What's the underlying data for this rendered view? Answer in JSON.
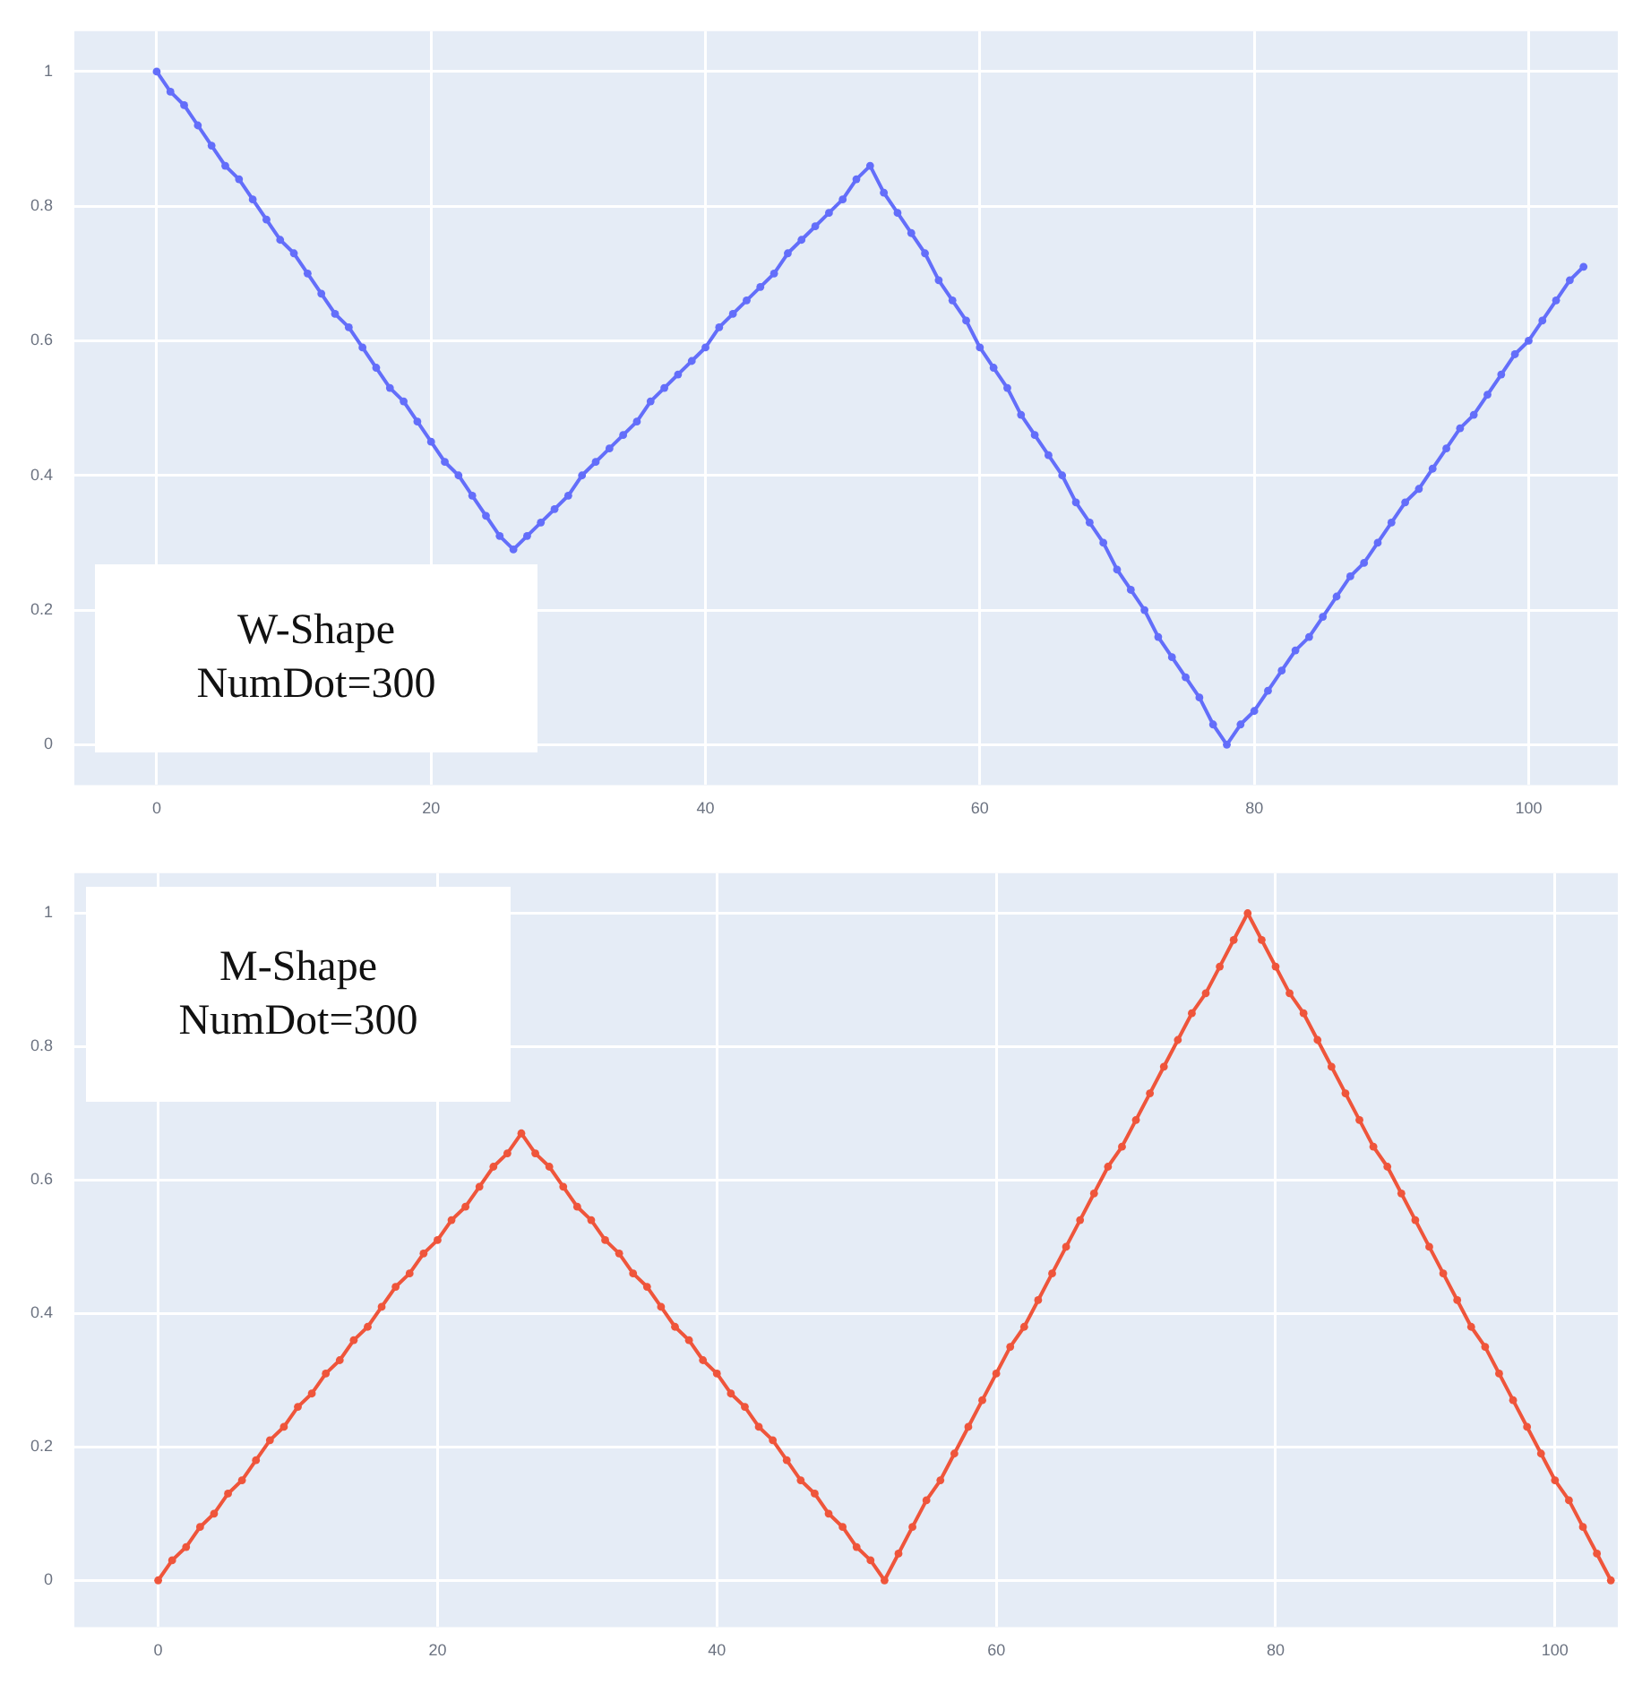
{
  "chart_data": [
    {
      "type": "line",
      "annotations": [
        "W-Shape\nNumDot=300"
      ],
      "marker": "circle",
      "grid": true,
      "legend": false,
      "xlim": [
        -6,
        106.5
      ],
      "xticks": [
        0,
        20,
        40,
        60,
        80,
        100
      ],
      "ylim": [
        -0.06,
        1.06
      ],
      "yticks": [
        0,
        0.2,
        0.4,
        0.6,
        0.8,
        1
      ],
      "x": [
        0,
        1,
        2,
        3,
        4,
        5,
        6,
        7,
        8,
        9,
        10,
        11,
        12,
        13,
        14,
        15,
        16,
        17,
        18,
        19,
        20,
        21,
        22,
        23,
        24,
        25,
        26,
        27,
        28,
        29,
        30,
        31,
        32,
        33,
        34,
        35,
        36,
        37,
        38,
        39,
        40,
        41,
        42,
        43,
        44,
        45,
        46,
        47,
        48,
        49,
        50,
        51,
        52,
        53,
        54,
        55,
        56,
        57,
        58,
        59,
        60,
        61,
        62,
        63,
        64,
        65,
        66,
        67,
        68,
        69,
        70,
        71,
        72,
        73,
        74,
        75,
        76,
        77,
        78,
        79,
        80,
        81,
        82,
        83,
        84,
        85,
        86,
        87,
        88,
        89,
        90,
        91,
        92,
        93,
        94,
        95,
        96,
        97,
        98,
        99,
        100,
        101,
        102,
        103,
        104
      ],
      "series": [
        {
          "color": "#636efa",
          "values": [
            1,
            0.97,
            0.95,
            0.92,
            0.89,
            0.86,
            0.84,
            0.81,
            0.78,
            0.75,
            0.73,
            0.7,
            0.67,
            0.64,
            0.62,
            0.59,
            0.56,
            0.53,
            0.51,
            0.48,
            0.45,
            0.42,
            0.4,
            0.37,
            0.34,
            0.31,
            0.29,
            0.31,
            0.33,
            0.35,
            0.37,
            0.4,
            0.42,
            0.44,
            0.46,
            0.48,
            0.51,
            0.53,
            0.55,
            0.57,
            0.59,
            0.62,
            0.64,
            0.66,
            0.68,
            0.7,
            0.73,
            0.75,
            0.77,
            0.79,
            0.81,
            0.84,
            0.86,
            0.82,
            0.79,
            0.76,
            0.73,
            0.69,
            0.66,
            0.63,
            0.59,
            0.56,
            0.53,
            0.49,
            0.46,
            0.43,
            0.4,
            0.36,
            0.33,
            0.3,
            0.26,
            0.23,
            0.2,
            0.16,
            0.13,
            0.1,
            0.07,
            0.03,
            0,
            0.03,
            0.05,
            0.08,
            0.11,
            0.14,
            0.16,
            0.19,
            0.22,
            0.25,
            0.27,
            0.3,
            0.33,
            0.36,
            0.38,
            0.41,
            0.44,
            0.47,
            0.49,
            0.52,
            0.55,
            0.58,
            0.6,
            0.63,
            0.66,
            0.69,
            0.71
          ]
        }
      ]
    },
    {
      "type": "line",
      "annotations": [
        "M-Shape\nNumDot=300"
      ],
      "marker": "circle",
      "grid": true,
      "legend": false,
      "xlim": [
        -6,
        104.5
      ],
      "xticks": [
        0,
        20,
        40,
        60,
        80,
        100
      ],
      "ylim": [
        -0.07,
        1.06
      ],
      "yticks": [
        0,
        0.2,
        0.4,
        0.6,
        0.8,
        1
      ],
      "x": [
        0,
        1,
        2,
        3,
        4,
        5,
        6,
        7,
        8,
        9,
        10,
        11,
        12,
        13,
        14,
        15,
        16,
        17,
        18,
        19,
        20,
        21,
        22,
        23,
        24,
        25,
        26,
        27,
        28,
        29,
        30,
        31,
        32,
        33,
        34,
        35,
        36,
        37,
        38,
        39,
        40,
        41,
        42,
        43,
        44,
        45,
        46,
        47,
        48,
        49,
        50,
        51,
        52,
        53,
        54,
        55,
        56,
        57,
        58,
        59,
        60,
        61,
        62,
        63,
        64,
        65,
        66,
        67,
        68,
        69,
        70,
        71,
        72,
        73,
        74,
        75,
        76,
        77,
        78,
        79,
        80,
        81,
        82,
        83,
        84,
        85,
        86,
        87,
        88,
        89,
        90,
        91,
        92,
        93,
        94,
        95,
        96,
        97,
        98,
        99,
        100,
        101,
        102,
        103,
        104
      ],
      "series": [
        {
          "color": "#ef553b",
          "values": [
            0,
            0.03,
            0.05,
            0.08,
            0.1,
            0.13,
            0.15,
            0.18,
            0.21,
            0.23,
            0.26,
            0.28,
            0.31,
            0.33,
            0.36,
            0.38,
            0.41,
            0.44,
            0.46,
            0.49,
            0.51,
            0.54,
            0.56,
            0.59,
            0.62,
            0.64,
            0.67,
            0.64,
            0.62,
            0.59,
            0.56,
            0.54,
            0.51,
            0.49,
            0.46,
            0.44,
            0.41,
            0.38,
            0.36,
            0.33,
            0.31,
            0.28,
            0.26,
            0.23,
            0.21,
            0.18,
            0.15,
            0.13,
            0.1,
            0.08,
            0.05,
            0.03,
            0,
            0.04,
            0.08,
            0.12,
            0.15,
            0.19,
            0.23,
            0.27,
            0.31,
            0.35,
            0.38,
            0.42,
            0.46,
            0.5,
            0.54,
            0.58,
            0.62,
            0.65,
            0.69,
            0.73,
            0.77,
            0.81,
            0.85,
            0.88,
            0.92,
            0.96,
            1,
            0.96,
            0.92,
            0.88,
            0.85,
            0.81,
            0.77,
            0.73,
            0.69,
            0.65,
            0.62,
            0.58,
            0.54,
            0.5,
            0.46,
            0.42,
            0.38,
            0.35,
            0.31,
            0.27,
            0.23,
            0.19,
            0.15,
            0.12,
            0.08,
            0.04,
            0
          ]
        }
      ]
    }
  ]
}
